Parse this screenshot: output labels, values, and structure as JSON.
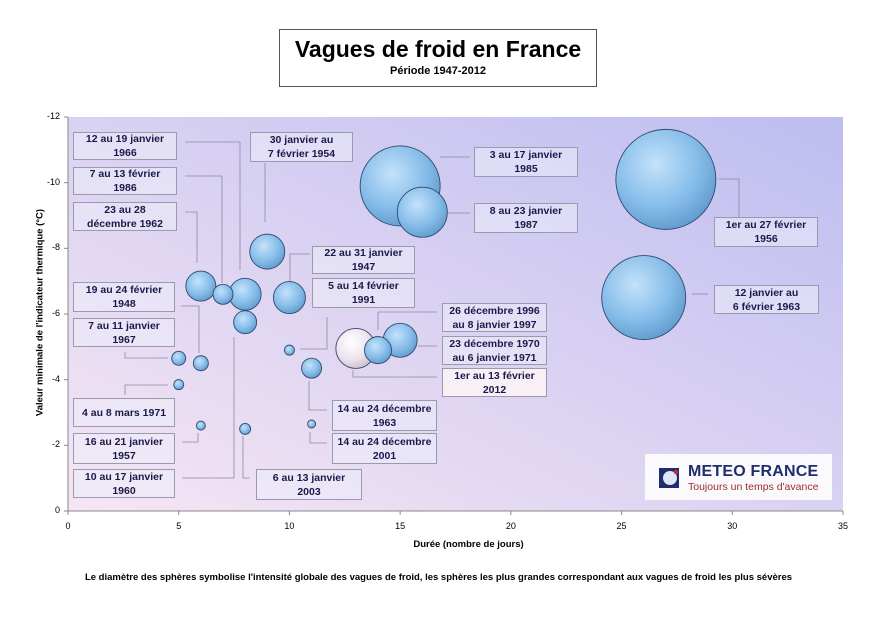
{
  "title": "Vagues de froid en France",
  "subtitle": "Période 1947-2012",
  "caption": "Le diamètre des sphères symbolise l'intensité globale des vagues de froid, les sphères les plus grandes correspondant aux vagues de froid les plus sévères",
  "logo": {
    "name": "METEO FRANCE",
    "tagline": "Toujours un temps d'avance"
  },
  "chart_data": {
    "type": "bubble",
    "title": "Vagues de froid en France",
    "subtitle": "Période 1947-2012",
    "xlabel": "Durée (nombre de jours)",
    "ylabel": "Valeur minimale de l'indicateur thermique (°C)",
    "xlim": [
      0,
      35
    ],
    "ylim": [
      -12,
      0
    ],
    "y_axis_inverted": true,
    "xticks": [
      "0",
      "5",
      "10",
      "15",
      "20",
      "25",
      "30",
      "35"
    ],
    "yticks": [
      "-12",
      "-10",
      "-8",
      "-6",
      "-4",
      "-2",
      "0"
    ],
    "grid": false,
    "colors": {
      "bubble": "#7fb8e6",
      "highlight": "#eee4ee",
      "bg_top": "#bdbdf0",
      "bg_bottom": "#f6e6f4"
    },
    "points": [
      {
        "label": [
          "12 au 19 janvier",
          "1966"
        ],
        "x": 8,
        "y": -6.6,
        "size": 32
      },
      {
        "label": [
          "7 au 13 février",
          "1986"
        ],
        "x": 7,
        "y": -6.6,
        "size": 20
      },
      {
        "label": [
          "23 au 28",
          "décembre 1962"
        ],
        "x": 6,
        "y": -6.85,
        "size": 30
      },
      {
        "label": [
          "19 au 24 février",
          "1948"
        ],
        "x": 6,
        "y": -4.5,
        "size": 15
      },
      {
        "label": [
          "7 au 11 janvier",
          "1967"
        ],
        "x": 5,
        "y": -4.65,
        "size": 14
      },
      {
        "label": [
          "4 au 8 mars 1971"
        ],
        "x": 5,
        "y": -3.85,
        "size": 10
      },
      {
        "label": [
          "16 au 21 janvier",
          "1957"
        ],
        "x": 6,
        "y": -2.6,
        "size": 9
      },
      {
        "label": [
          "10 au 17 janvier",
          "1960"
        ],
        "x": 8,
        "y": -5.75,
        "size": 23
      },
      {
        "label": [
          "30 janvier au",
          "7 février 1954"
        ],
        "x": 9,
        "y": -7.9,
        "size": 35
      },
      {
        "label": [
          "22 au 31 janvier",
          "1947"
        ],
        "x": 10,
        "y": -6.5,
        "size": 32
      },
      {
        "label": [
          "5 au 14 février",
          "1991"
        ],
        "x": 10,
        "y": -4.9,
        "size": 10
      },
      {
        "label": [
          "3 au 17 janvier",
          "1985"
        ],
        "x": 15,
        "y": -9.9,
        "size": 80
      },
      {
        "label": [
          "8 au 23 janvier",
          "1987"
        ],
        "x": 16,
        "y": -9.1,
        "size": 50
      },
      {
        "label": [
          "1er au 27 février",
          "1956"
        ],
        "x": 27,
        "y": -10.1,
        "size": 100
      },
      {
        "label": [
          "12 janvier au",
          "6 février 1963"
        ],
        "x": 26,
        "y": -6.5,
        "size": 84
      },
      {
        "label": [
          "26 décembre 1996",
          "au 8 janvier 1997"
        ],
        "x": 14,
        "y": -4.9,
        "size": 27
      },
      {
        "label": [
          "23 décembre 1970",
          "au 6 janvier 1971"
        ],
        "x": 15,
        "y": -5.2,
        "size": 34
      },
      {
        "label": [
          "1er au 13 février",
          "2012"
        ],
        "x": 13,
        "y": -4.95,
        "size": 40,
        "highlight": true
      },
      {
        "label": [
          "14 au 24 décembre",
          "1963"
        ],
        "x": 11,
        "y": -4.35,
        "size": 20
      },
      {
        "label": [
          "14 au 24 décembre",
          "2001"
        ],
        "x": 11,
        "y": -2.65,
        "size": 8
      },
      {
        "label": [
          "6 au 13 janvier",
          "2003"
        ],
        "x": 8,
        "y": -2.5,
        "size": 11
      }
    ]
  }
}
